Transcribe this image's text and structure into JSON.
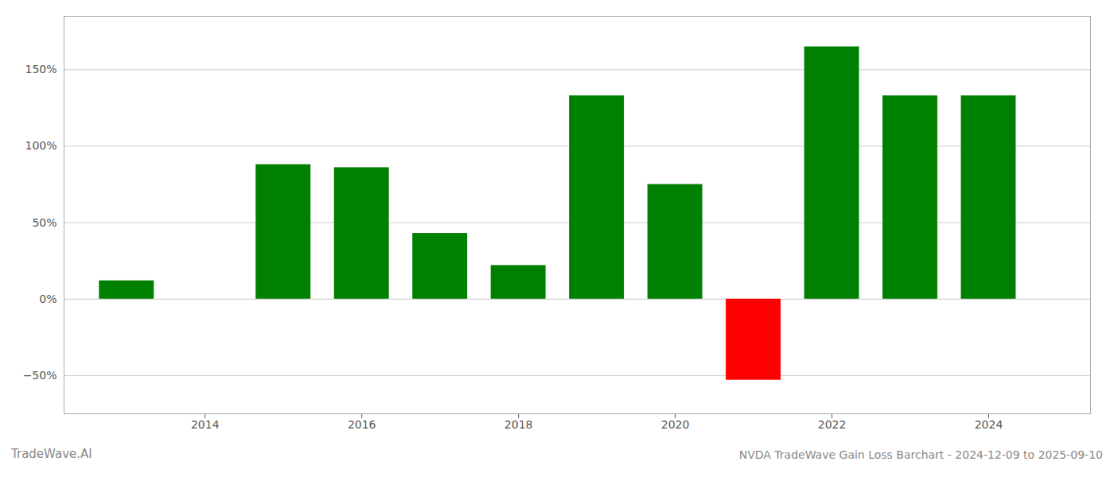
{
  "chart_data": {
    "type": "bar",
    "title": "NVDA TradeWave Gain Loss Barchart - 2024-12-09 to 2025-09-10",
    "annotations": [
      "TradeWave.AI"
    ],
    "x": [
      2013,
      2015,
      2016,
      2017,
      2018,
      2019,
      2020,
      2021,
      2022,
      2023,
      2024
    ],
    "values": [
      12,
      88,
      86,
      43,
      22,
      133,
      75,
      -53,
      165,
      133,
      133
    ],
    "colors": [
      "#008000",
      "#008000",
      "#008000",
      "#008000",
      "#008000",
      "#008000",
      "#008000",
      "#ff0000",
      "#008000",
      "#008000",
      "#008000"
    ],
    "xlim": [
      2012.2,
      2025.3
    ],
    "xticks": [
      2014,
      2016,
      2018,
      2020,
      2022,
      2024
    ],
    "ylim": [
      -75,
      185
    ],
    "yticks": [
      {
        "value": -50,
        "label": "−50%"
      },
      {
        "value": 0,
        "label": "0%"
      },
      {
        "value": 50,
        "label": "50%"
      },
      {
        "value": 100,
        "label": "100%"
      },
      {
        "value": 150,
        "label": "150%"
      }
    ],
    "grid": true
  }
}
